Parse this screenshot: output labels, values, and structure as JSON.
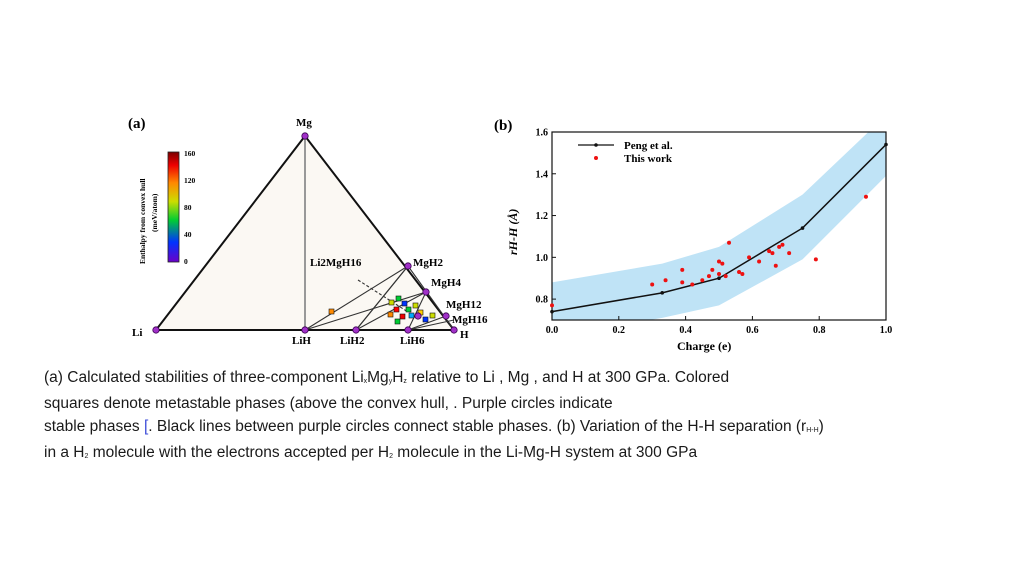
{
  "panel_a": {
    "label": "(a)",
    "vertices": {
      "top": "Mg",
      "left": "Li",
      "right": "H"
    },
    "colorbar": {
      "title_line1": "Enthalpy from convex hull",
      "title_line2": "(meV/atom)",
      "ticks": [
        "160",
        "120",
        "80",
        "40",
        "0"
      ]
    },
    "phase_labels": {
      "li2mgh16": "Li2MgH16",
      "mgh2": "MgH2",
      "mgh4": "MgH4",
      "mgh12": "MgH12",
      "mgh16": "MgH16",
      "lih": "LiH",
      "lih2": "LiH2",
      "lih6": "LiH6"
    }
  },
  "panel_b": {
    "label": "(b)",
    "legend": {
      "series1": "Peng et al.",
      "series2": "This work"
    },
    "xlabel": "Charge (e)",
    "ylabel": "rH-H (Å)"
  },
  "chart_data": {
    "type": "scatter",
    "xlabel": "Charge (e)",
    "ylabel": "rH-H (Å)",
    "xlim": [
      0.0,
      1.0
    ],
    "ylim": [
      0.7,
      1.6
    ],
    "xticks": [
      "0.0",
      "0.2",
      "0.4",
      "0.6",
      "0.8",
      "1.0"
    ],
    "yticks": [
      "0.8",
      "1.0",
      "1.2",
      "1.4",
      "1.6"
    ],
    "series": [
      {
        "name": "Peng et al.",
        "kind": "line",
        "x": [
          0.0,
          0.33,
          0.5,
          0.75,
          1.0
        ],
        "y": [
          0.74,
          0.83,
          0.9,
          1.14,
          1.54
        ]
      },
      {
        "name": "This work",
        "kind": "points",
        "x": [
          0.0,
          0.3,
          0.34,
          0.39,
          0.39,
          0.42,
          0.45,
          0.47,
          0.48,
          0.5,
          0.5,
          0.51,
          0.52,
          0.53,
          0.56,
          0.57,
          0.59,
          0.62,
          0.65,
          0.66,
          0.67,
          0.68,
          0.69,
          0.71,
          0.79,
          0.94
        ],
        "y": [
          0.77,
          0.87,
          0.89,
          0.94,
          0.88,
          0.87,
          0.89,
          0.91,
          0.94,
          0.98,
          0.92,
          0.97,
          0.91,
          1.07,
          0.93,
          0.92,
          1.0,
          0.98,
          1.03,
          1.02,
          0.96,
          1.05,
          1.06,
          1.02,
          0.99,
          1.29
        ]
      }
    ],
    "band": {
      "x": [
        0.0,
        0.33,
        0.5,
        0.75,
        1.0
      ],
      "lower": [
        0.62,
        0.71,
        0.77,
        0.99,
        1.39
      ],
      "upper": [
        0.88,
        0.97,
        1.05,
        1.3,
        1.68
      ]
    },
    "legend_position": "top-left"
  },
  "caption": {
    "line1_a": "(a) Calculated stabilities of three-component Li",
    "line1_x": "x",
    "line1_b": "Mg",
    "line1_y": "y",
    "line1_c": "H",
    "line1_z": "z",
    "line1_d": " relative to Li , Mg , and H  at 300 GPa. Colored",
    "line2": "squares denote metastable phases (above the convex hull, . Purple circles indicate",
    "line3_a": "stable phases ",
    "line3_bracket": "[",
    "line3_b": ". Black lines between purple circles connect stable phases. (b) Variation of the H-H separation (r",
    "line3_sub": "H-H",
    "line3_c": ")",
    "line4_a": "in a H",
    "line4_sub1": "2",
    "line4_b": " molecule with the electrons accepted per H",
    "line4_sub2": "2",
    "line4_c": " molecule in the Li-Mg-H system at 300 GPa"
  }
}
